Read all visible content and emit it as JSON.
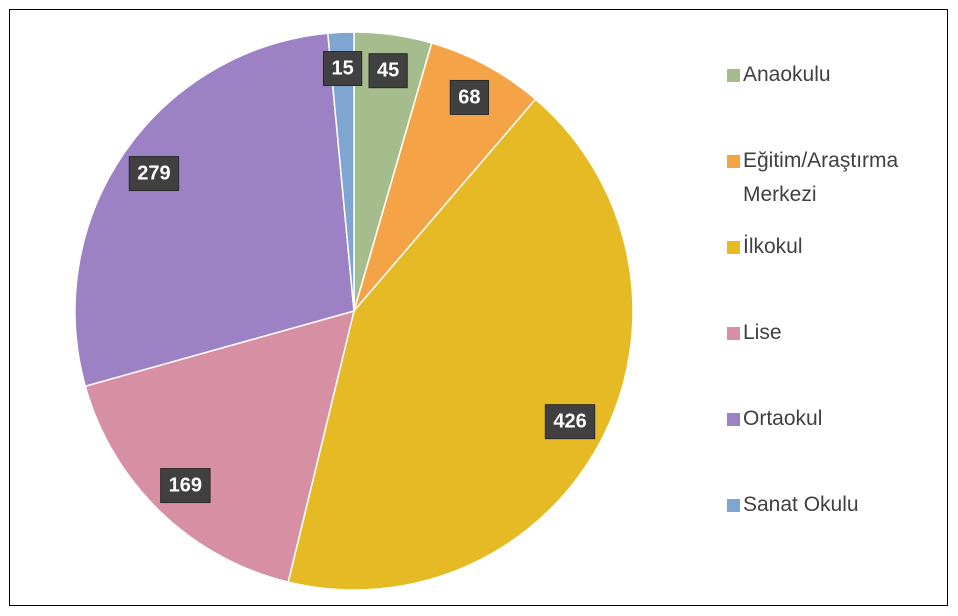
{
  "chart_data": {
    "type": "pie",
    "categories": [
      "Anaokulu",
      "Eğitim/Araştırma Merkezi",
      "İlkokul",
      "Lise",
      "Ortaokul",
      "Sanat Okulu"
    ],
    "values": [
      45,
      68,
      426,
      169,
      279,
      15
    ],
    "colors": [
      "#a5bd8c",
      "#f4a446",
      "#e5ba25",
      "#d68fa3",
      "#9c82c4",
      "#7ea6d0"
    ],
    "legend": "right"
  }
}
